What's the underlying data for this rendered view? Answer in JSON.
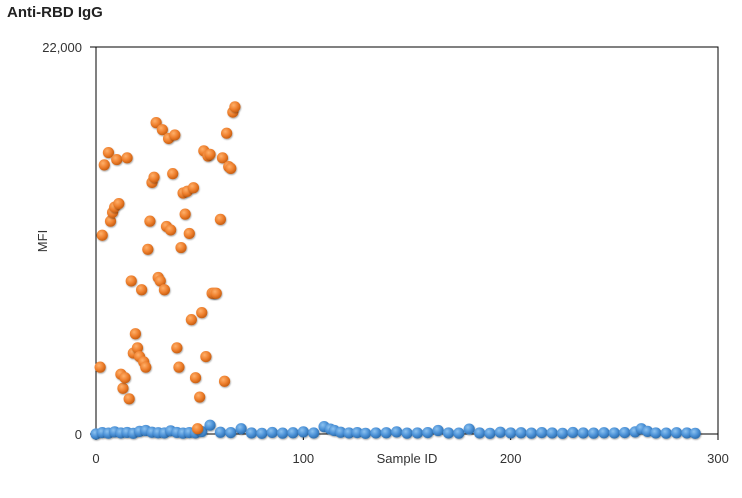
{
  "chart_data": {
    "type": "scatter",
    "title": "Anti-RBD IgG",
    "xlabel": "Sample ID",
    "ylabel": "MFI",
    "xlim": [
      0,
      300
    ],
    "ylim": [
      0,
      22000
    ],
    "x_ticks": [
      0,
      100,
      200,
      300
    ],
    "x_tick_labels": [
      "0",
      "100",
      "200",
      "300"
    ],
    "y_ticks": [
      0,
      22000
    ],
    "y_tick_labels": [
      "0",
      "22,000"
    ],
    "grid": false,
    "series": [
      {
        "color": "#ee7f2d",
        "points": [
          [
            2,
            3800
          ],
          [
            3,
            11300
          ],
          [
            4,
            15300
          ],
          [
            6,
            16000
          ],
          [
            7,
            12100
          ],
          [
            8,
            12600
          ],
          [
            9,
            12900
          ],
          [
            10,
            15600
          ],
          [
            11,
            13100
          ],
          [
            12,
            3400
          ],
          [
            13,
            2600
          ],
          [
            14,
            3200
          ],
          [
            15,
            15700
          ],
          [
            16,
            2000
          ],
          [
            17,
            8700
          ],
          [
            18,
            4600
          ],
          [
            19,
            5700
          ],
          [
            20,
            4900
          ],
          [
            21,
            4400
          ],
          [
            22,
            8200
          ],
          [
            23,
            4100
          ],
          [
            24,
            3800
          ],
          [
            25,
            10500
          ],
          [
            26,
            12100
          ],
          [
            27,
            14300
          ],
          [
            28,
            14600
          ],
          [
            29,
            17700
          ],
          [
            30,
            8900
          ],
          [
            31,
            8700
          ],
          [
            32,
            17300
          ],
          [
            33,
            8200
          ],
          [
            34,
            11800
          ],
          [
            35,
            16800
          ],
          [
            36,
            11600
          ],
          [
            37,
            14800
          ],
          [
            38,
            17000
          ],
          [
            39,
            4900
          ],
          [
            40,
            3800
          ],
          [
            41,
            10600
          ],
          [
            42,
            13700
          ],
          [
            43,
            12500
          ],
          [
            44,
            13800
          ],
          [
            45,
            11400
          ],
          [
            46,
            6500
          ],
          [
            47,
            14000
          ],
          [
            48,
            3200
          ],
          [
            49,
            300
          ],
          [
            50,
            2100
          ],
          [
            51,
            6900
          ],
          [
            52,
            16100
          ],
          [
            53,
            4400
          ],
          [
            54,
            15800
          ],
          [
            55,
            15900
          ],
          [
            56,
            8000
          ],
          [
            57,
            8000
          ],
          [
            58,
            8000
          ],
          [
            60,
            12200
          ],
          [
            61,
            15700
          ],
          [
            62,
            3000
          ],
          [
            63,
            17100
          ],
          [
            64,
            15200
          ],
          [
            65,
            15100
          ],
          [
            66,
            18300
          ],
          [
            67,
            18600
          ]
        ]
      },
      {
        "color": "#4a90d6",
        "points": [
          [
            0,
            0
          ],
          [
            3,
            80
          ],
          [
            6,
            50
          ],
          [
            9,
            120
          ],
          [
            12,
            60
          ],
          [
            15,
            90
          ],
          [
            18,
            40
          ],
          [
            21,
            150
          ],
          [
            24,
            200
          ],
          [
            27,
            100
          ],
          [
            30,
            70
          ],
          [
            33,
            60
          ],
          [
            36,
            180
          ],
          [
            39,
            90
          ],
          [
            42,
            50
          ],
          [
            45,
            80
          ],
          [
            48,
            60
          ],
          [
            51,
            140
          ],
          [
            55,
            500
          ],
          [
            60,
            100
          ],
          [
            65,
            80
          ],
          [
            70,
            300
          ],
          [
            75,
            60
          ],
          [
            80,
            40
          ],
          [
            85,
            90
          ],
          [
            90,
            50
          ],
          [
            95,
            70
          ],
          [
            100,
            120
          ],
          [
            105,
            60
          ],
          [
            110,
            420
          ],
          [
            113,
            280
          ],
          [
            115,
            200
          ],
          [
            118,
            100
          ],
          [
            122,
            60
          ],
          [
            126,
            80
          ],
          [
            130,
            40
          ],
          [
            135,
            60
          ],
          [
            140,
            70
          ],
          [
            145,
            120
          ],
          [
            150,
            50
          ],
          [
            155,
            60
          ],
          [
            160,
            80
          ],
          [
            165,
            200
          ],
          [
            170,
            60
          ],
          [
            175,
            50
          ],
          [
            180,
            280
          ],
          [
            185,
            60
          ],
          [
            190,
            40
          ],
          [
            195,
            100
          ],
          [
            200,
            60
          ],
          [
            205,
            70
          ],
          [
            210,
            50
          ],
          [
            215,
            80
          ],
          [
            220,
            60
          ],
          [
            225,
            40
          ],
          [
            230,
            90
          ],
          [
            235,
            60
          ],
          [
            240,
            50
          ],
          [
            245,
            70
          ],
          [
            250,
            60
          ],
          [
            255,
            80
          ],
          [
            260,
            120
          ],
          [
            263,
            300
          ],
          [
            266,
            150
          ],
          [
            270,
            60
          ],
          [
            275,
            50
          ],
          [
            280,
            70
          ],
          [
            285,
            60
          ],
          [
            289,
            40
          ]
        ]
      }
    ]
  }
}
